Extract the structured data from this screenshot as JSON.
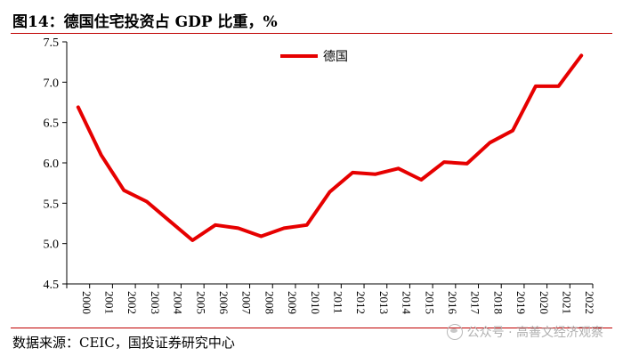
{
  "header": {
    "title": "图14：德国住宅投资占 GDP 比重，%"
  },
  "footer": {
    "source": "数据来源：CEIC，国投证券研究中心",
    "watermark": "公众号 · 高善文经济观察"
  },
  "chart_data": {
    "type": "line",
    "title": "图14：德国住宅投资占 GDP 比重，%",
    "xlabel": "",
    "ylabel": "",
    "ylim": [
      4.5,
      7.5
    ],
    "yticks": [
      4.5,
      5.0,
      5.5,
      6.0,
      6.5,
      7.0,
      7.5
    ],
    "ytick_labels": [
      "4.5",
      "5.0",
      "5.5",
      "6.0",
      "6.5",
      "7.0",
      "7.5"
    ],
    "x": [
      "2000",
      "2001",
      "2002",
      "2003",
      "2004",
      "2005",
      "2006",
      "2007",
      "2008",
      "2009",
      "2010",
      "2011",
      "2012",
      "2013",
      "2014",
      "2015",
      "2016",
      "2017",
      "2018",
      "2019",
      "2020",
      "2021",
      "2022"
    ],
    "series": [
      {
        "name": "德国",
        "color": "#e60000",
        "values": [
          6.69,
          6.1,
          5.66,
          5.52,
          5.28,
          5.04,
          5.23,
          5.19,
          5.09,
          5.19,
          5.23,
          5.64,
          5.88,
          5.86,
          5.93,
          5.79,
          6.01,
          5.99,
          6.25,
          6.4,
          6.95,
          6.95,
          7.33
        ]
      }
    ],
    "grid": false,
    "legend_position": "top-center"
  }
}
